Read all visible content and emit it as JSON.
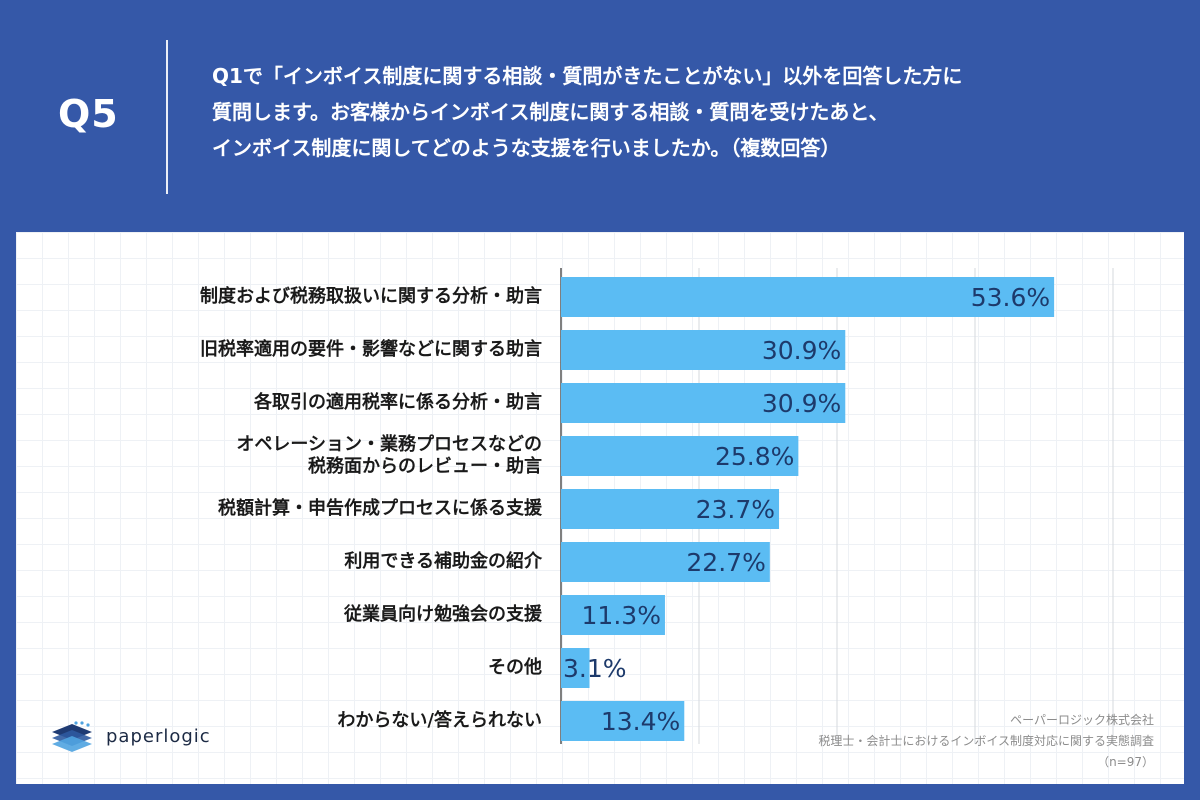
{
  "header": {
    "badge": "Q5",
    "question_lines": [
      "Q1で「インボイス制度に関する相談・質問がきたことがない」以外を回答した方に",
      "質問します。お客様からインボイス制度に関する相談・質問を受けたあと、",
      "インボイス制度に関してどのような支援を行いましたか。（複数回答）"
    ]
  },
  "logo": {
    "text": "paperlogic",
    "icon": "stacked-layers-logo-icon"
  },
  "source": {
    "line1": "ペーパーロジック株式会社",
    "line2": "税理士・会計士におけるインボイス制度対応に関する実態調査",
    "line3": "（n=97）"
  },
  "colors": {
    "background": "#3558a8",
    "bar": "#5bbcf3",
    "value_text": "#1d3a6b"
  },
  "chart_data": {
    "type": "bar",
    "orientation": "horizontal",
    "categories": [
      "制度および税務取扱いに関する分析・助言",
      "旧税率適用の要件・影響などに関する助言",
      "各取引の適用税率に係る分析・助言",
      "オペレーション・業務プロセスなどの\n税務面からのレビュー・助言",
      "税額計算・申告作成プロセスに係る支援",
      "利用できる補助金の紹介",
      "従業員向け勉強会の支援",
      "その他",
      "わからない/答えられない"
    ],
    "values": [
      53.6,
      30.9,
      30.9,
      25.8,
      23.7,
      22.7,
      11.3,
      3.1,
      13.4
    ],
    "value_labels": [
      "53.6%",
      "30.9%",
      "30.9%",
      "25.8%",
      "23.7%",
      "22.7%",
      "11.3%",
      "3.1%",
      "13.4%"
    ],
    "xlim": [
      0,
      60
    ],
    "grid": true,
    "gridline_step": 15
  }
}
